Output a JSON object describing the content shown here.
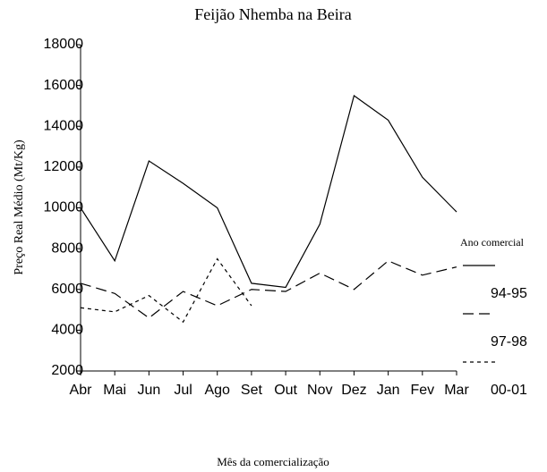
{
  "chart_data": {
    "type": "line",
    "title": "Feijão Nhemba na Beira",
    "x_label": "Mês da comercialização",
    "y_label": "Preço Real Médio (Mt/Kg)",
    "legend_title": "Ano comercial",
    "categories": [
      "Abr",
      "Mai",
      "Jun",
      "Jul",
      "Ago",
      "Set",
      "Out",
      "Nov",
      "Dez",
      "Jan",
      "Fev",
      "Mar"
    ],
    "series": [
      {
        "name": "94-95",
        "color": "#000000",
        "dash": "solid",
        "values": [
          10000,
          7400,
          12300,
          11200,
          10000,
          6300,
          6100,
          9200,
          15500,
          14300,
          11500,
          9800
        ]
      },
      {
        "name": "97-98",
        "color": "#000000",
        "dash": "long",
        "values": [
          6300,
          5800,
          4600,
          5900,
          5200,
          6000,
          5900,
          6800,
          6000,
          7400,
          6700,
          7100
        ]
      },
      {
        "name": "00-01",
        "color": "#000000",
        "dash": "short",
        "values": [
          5100,
          4900,
          5700,
          4400,
          7500,
          5200,
          null,
          null,
          null,
          null,
          null,
          null
        ]
      }
    ],
    "ylim": [
      2000,
      18000
    ],
    "yticks": [
      2000,
      4000,
      6000,
      8000,
      10000,
      12000,
      14000,
      16000,
      18000
    ],
    "grid": false
  }
}
